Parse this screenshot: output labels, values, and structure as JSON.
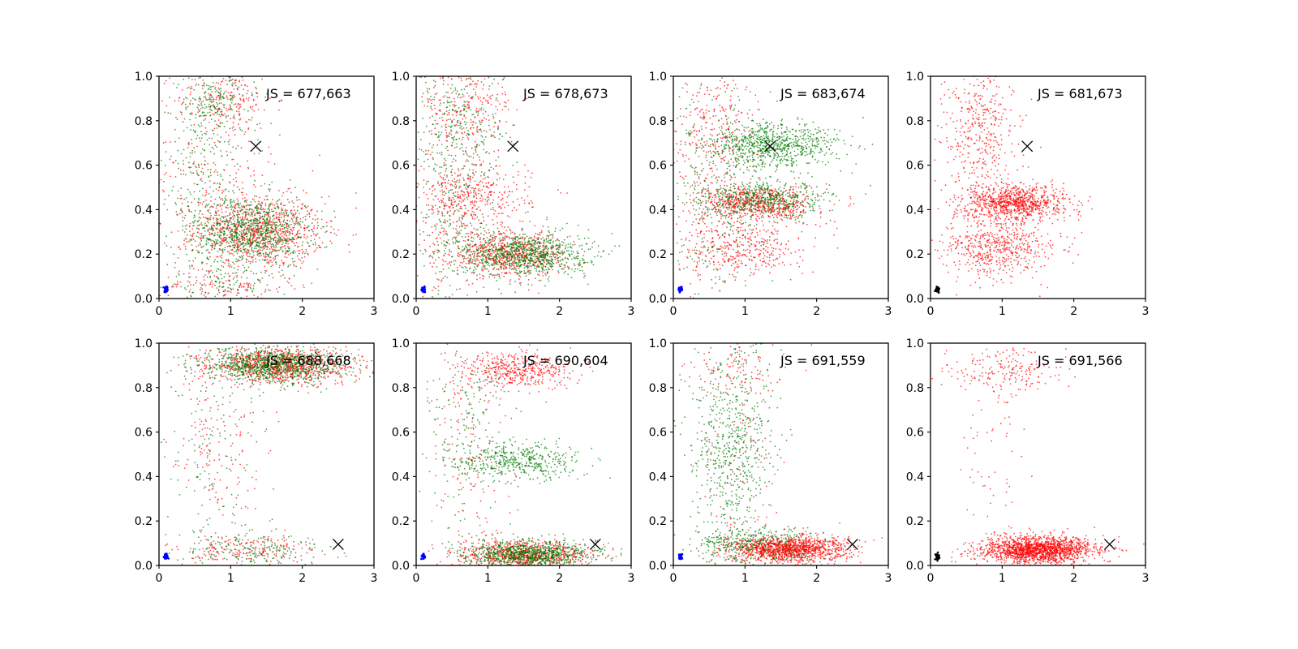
{
  "chart_data": [
    {
      "type": "scatter",
      "annotation": "JS = 677,663",
      "xlim": [
        0,
        3
      ],
      "ylim": [
        0,
        1
      ],
      "xticks": [
        "0",
        "1",
        "2",
        "3"
      ],
      "yticks": [
        "0.0",
        "0.2",
        "0.4",
        "0.6",
        "0.8",
        "1.0"
      ],
      "x_marker": {
        "x": 1.35,
        "y": 0.685
      },
      "origin_cluster": {
        "x": 0.1,
        "y": 0.04,
        "color": "#0000ff"
      },
      "series": [
        {
          "color": "#ff0000",
          "clusters": [
            {
              "cx": 1.4,
              "cy": 0.3,
              "sx": 0.45,
              "sy": 0.08,
              "n": 900
            },
            {
              "cx": 0.9,
              "cy": 0.9,
              "sx": 0.35,
              "sy": 0.06,
              "n": 180
            },
            {
              "cx": 0.8,
              "cy": 0.55,
              "sx": 0.45,
              "sy": 0.22,
              "n": 260
            },
            {
              "cx": 0.9,
              "cy": 0.05,
              "sx": 0.5,
              "sy": 0.04,
              "n": 120
            }
          ]
        },
        {
          "color": "#007a00",
          "clusters": [
            {
              "cx": 1.3,
              "cy": 0.3,
              "sx": 0.4,
              "sy": 0.08,
              "n": 900
            },
            {
              "cx": 0.8,
              "cy": 0.88,
              "sx": 0.3,
              "sy": 0.07,
              "n": 180
            },
            {
              "cx": 0.6,
              "cy": 0.55,
              "sx": 0.35,
              "sy": 0.22,
              "n": 260
            },
            {
              "cx": 0.9,
              "cy": 0.05,
              "sx": 0.4,
              "sy": 0.04,
              "n": 100
            }
          ]
        }
      ]
    },
    {
      "type": "scatter",
      "annotation": "JS = 678,673",
      "xlim": [
        0,
        3
      ],
      "ylim": [
        0,
        1
      ],
      "xticks": [
        "0",
        "1",
        "2",
        "3"
      ],
      "yticks": [
        "0.0",
        "0.2",
        "0.4",
        "0.6",
        "0.8",
        "1.0"
      ],
      "x_marker": {
        "x": 1.35,
        "y": 0.685
      },
      "origin_cluster": {
        "x": 0.1,
        "y": 0.04,
        "color": "#0000ff"
      },
      "series": [
        {
          "color": "#ff0000",
          "clusters": [
            {
              "cx": 1.3,
              "cy": 0.2,
              "sx": 0.4,
              "sy": 0.05,
              "n": 700
            },
            {
              "cx": 0.8,
              "cy": 0.45,
              "sx": 0.4,
              "sy": 0.07,
              "n": 350
            },
            {
              "cx": 0.7,
              "cy": 0.85,
              "sx": 0.35,
              "sy": 0.1,
              "n": 250
            },
            {
              "cx": 0.5,
              "cy": 0.4,
              "sx": 0.3,
              "sy": 0.25,
              "n": 200
            }
          ]
        },
        {
          "color": "#007a00",
          "clusters": [
            {
              "cx": 1.5,
              "cy": 0.2,
              "sx": 0.45,
              "sy": 0.05,
              "n": 900
            },
            {
              "cx": 0.6,
              "cy": 0.8,
              "sx": 0.35,
              "sy": 0.15,
              "n": 280
            },
            {
              "cx": 0.5,
              "cy": 0.4,
              "sx": 0.3,
              "sy": 0.2,
              "n": 200
            }
          ]
        }
      ]
    },
    {
      "type": "scatter",
      "annotation": "JS = 683,674",
      "xlim": [
        0,
        3
      ],
      "ylim": [
        0,
        1
      ],
      "xticks": [
        "0",
        "1",
        "2",
        "3"
      ],
      "yticks": [
        "0.0",
        "0.2",
        "0.4",
        "0.6",
        "0.8",
        "1.0"
      ],
      "x_marker": {
        "x": 1.35,
        "y": 0.685
      },
      "origin_cluster": {
        "x": 0.1,
        "y": 0.04,
        "color": "#0000ff"
      },
      "series": [
        {
          "color": "#ff0000",
          "clusters": [
            {
              "cx": 1.2,
              "cy": 0.43,
              "sx": 0.4,
              "sy": 0.04,
              "n": 700
            },
            {
              "cx": 1.0,
              "cy": 0.22,
              "sx": 0.4,
              "sy": 0.06,
              "n": 350
            },
            {
              "cx": 0.6,
              "cy": 0.8,
              "sx": 0.3,
              "sy": 0.15,
              "n": 250
            },
            {
              "cx": 0.5,
              "cy": 0.4,
              "sx": 0.25,
              "sy": 0.25,
              "n": 150
            }
          ]
        },
        {
          "color": "#007a00",
          "clusters": [
            {
              "cx": 1.4,
              "cy": 0.69,
              "sx": 0.45,
              "sy": 0.05,
              "n": 800
            },
            {
              "cx": 1.3,
              "cy": 0.44,
              "sx": 0.45,
              "sy": 0.04,
              "n": 500
            },
            {
              "cx": 0.6,
              "cy": 0.5,
              "sx": 0.35,
              "sy": 0.28,
              "n": 300
            }
          ]
        }
      ]
    },
    {
      "type": "scatter",
      "annotation": "JS = 681,673",
      "xlim": [
        0,
        3
      ],
      "ylim": [
        0,
        1
      ],
      "xticks": [
        "0",
        "1",
        "2",
        "3"
      ],
      "yticks": [
        "0.0",
        "0.2",
        "0.4",
        "0.6",
        "0.8",
        "1.0"
      ],
      "x_marker": {
        "x": 1.35,
        "y": 0.685
      },
      "origin_cluster": {
        "x": 0.1,
        "y": 0.04,
        "color": "#000000"
      },
      "series": [
        {
          "color": "#ff0000",
          "clusters": [
            {
              "cx": 1.2,
              "cy": 0.43,
              "sx": 0.35,
              "sy": 0.04,
              "n": 900
            },
            {
              "cx": 1.0,
              "cy": 0.23,
              "sx": 0.4,
              "sy": 0.06,
              "n": 450
            },
            {
              "cx": 0.7,
              "cy": 0.8,
              "sx": 0.25,
              "sy": 0.15,
              "n": 320
            },
            {
              "cx": 0.7,
              "cy": 0.4,
              "sx": 0.3,
              "sy": 0.25,
              "n": 250
            }
          ]
        }
      ]
    },
    {
      "type": "scatter",
      "annotation": "JS = 688,668",
      "xlim": [
        0,
        3
      ],
      "ylim": [
        0,
        1
      ],
      "xticks": [
        "0",
        "1",
        "2",
        "3"
      ],
      "yticks": [
        "0.0",
        "0.2",
        "0.4",
        "0.6",
        "0.8",
        "1.0"
      ],
      "x_marker": {
        "x": 2.5,
        "y": 0.095
      },
      "origin_cluster": {
        "x": 0.1,
        "y": 0.04,
        "color": "#0000ff"
      },
      "series": [
        {
          "color": "#ff0000",
          "clusters": [
            {
              "cx": 1.7,
              "cy": 0.9,
              "sx": 0.5,
              "sy": 0.04,
              "n": 1000
            },
            {
              "cx": 1.2,
              "cy": 0.07,
              "sx": 0.5,
              "sy": 0.04,
              "n": 200
            },
            {
              "cx": 0.8,
              "cy": 0.5,
              "sx": 0.35,
              "sy": 0.22,
              "n": 150
            }
          ]
        },
        {
          "color": "#007a00",
          "clusters": [
            {
              "cx": 1.6,
              "cy": 0.9,
              "sx": 0.5,
              "sy": 0.04,
              "n": 1000
            },
            {
              "cx": 1.3,
              "cy": 0.07,
              "sx": 0.5,
              "sy": 0.04,
              "n": 200
            },
            {
              "cx": 0.8,
              "cy": 0.5,
              "sx": 0.35,
              "sy": 0.22,
              "n": 120
            }
          ]
        }
      ]
    },
    {
      "type": "scatter",
      "annotation": "JS = 690,604",
      "xlim": [
        0,
        3
      ],
      "ylim": [
        0,
        1
      ],
      "xticks": [
        "0",
        "1",
        "2",
        "3"
      ],
      "yticks": [
        "0.0",
        "0.2",
        "0.4",
        "0.6",
        "0.8",
        "1.0"
      ],
      "x_marker": {
        "x": 2.5,
        "y": 0.095
      },
      "origin_cluster": {
        "x": 0.1,
        "y": 0.04,
        "color": "#0000ff"
      },
      "series": [
        {
          "color": "#ff0000",
          "clusters": [
            {
              "cx": 1.5,
              "cy": 0.05,
              "sx": 0.45,
              "sy": 0.03,
              "n": 800
            },
            {
              "cx": 1.4,
              "cy": 0.88,
              "sx": 0.4,
              "sy": 0.04,
              "n": 450
            },
            {
              "cx": 0.7,
              "cy": 0.5,
              "sx": 0.3,
              "sy": 0.25,
              "n": 150
            }
          ]
        },
        {
          "color": "#007a00",
          "clusters": [
            {
              "cx": 1.6,
              "cy": 0.05,
              "sx": 0.45,
              "sy": 0.03,
              "n": 900
            },
            {
              "cx": 1.4,
              "cy": 0.47,
              "sx": 0.45,
              "sy": 0.04,
              "n": 450
            },
            {
              "cx": 0.7,
              "cy": 0.6,
              "sx": 0.3,
              "sy": 0.25,
              "n": 200
            }
          ]
        }
      ]
    },
    {
      "type": "scatter",
      "annotation": "JS = 691,559",
      "xlim": [
        0,
        3
      ],
      "ylim": [
        0,
        1
      ],
      "xticks": [
        "0",
        "1",
        "2",
        "3"
      ],
      "yticks": [
        "0.0",
        "0.2",
        "0.4",
        "0.6",
        "0.8",
        "1.0"
      ],
      "x_marker": {
        "x": 2.5,
        "y": 0.095
      },
      "origin_cluster": {
        "x": 0.1,
        "y": 0.04,
        "color": "#0000ff"
      },
      "series": [
        {
          "color": "#007a00",
          "clusters": [
            {
              "cx": 0.8,
              "cy": 0.55,
              "sx": 0.3,
              "sy": 0.25,
              "n": 700
            },
            {
              "cx": 1.2,
              "cy": 0.09,
              "sx": 0.45,
              "sy": 0.04,
              "n": 500
            }
          ]
        },
        {
          "color": "#ff0000",
          "clusters": [
            {
              "cx": 1.6,
              "cy": 0.07,
              "sx": 0.4,
              "sy": 0.03,
              "n": 1200
            },
            {
              "cx": 1.0,
              "cy": 0.88,
              "sx": 0.35,
              "sy": 0.06,
              "n": 100
            },
            {
              "cx": 0.9,
              "cy": 0.45,
              "sx": 0.3,
              "sy": 0.2,
              "n": 80
            }
          ]
        }
      ]
    },
    {
      "type": "scatter",
      "annotation": "JS = 691,566",
      "xlim": [
        0,
        3
      ],
      "ylim": [
        0,
        1
      ],
      "xticks": [
        "0",
        "1",
        "2",
        "3"
      ],
      "yticks": [
        "0.0",
        "0.2",
        "0.4",
        "0.6",
        "0.8",
        "1.0"
      ],
      "x_marker": {
        "x": 2.5,
        "y": 0.095
      },
      "origin_cluster": {
        "x": 0.1,
        "y": 0.04,
        "color": "#000000"
      },
      "series": [
        {
          "color": "#ff0000",
          "clusters": [
            {
              "cx": 1.5,
              "cy": 0.07,
              "sx": 0.4,
              "sy": 0.03,
              "n": 1700
            },
            {
              "cx": 1.0,
              "cy": 0.88,
              "sx": 0.4,
              "sy": 0.05,
              "n": 200
            },
            {
              "cx": 0.9,
              "cy": 0.45,
              "sx": 0.25,
              "sy": 0.2,
              "n": 60
            }
          ]
        }
      ]
    }
  ]
}
